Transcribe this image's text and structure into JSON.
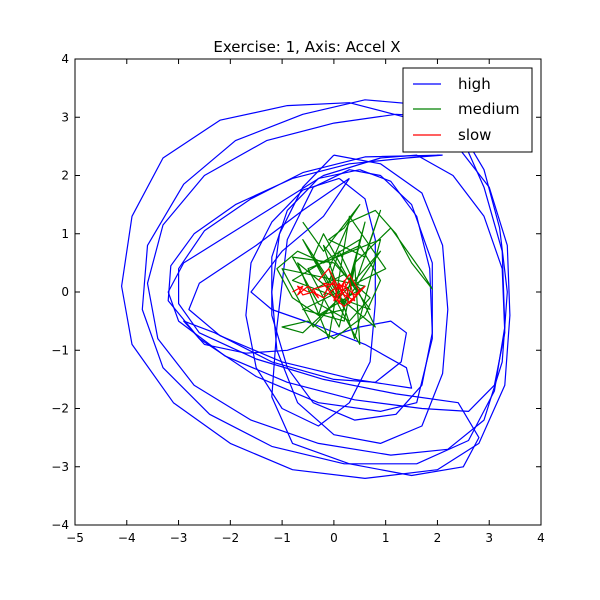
{
  "chart_data": {
    "type": "line",
    "title": "Exercise: 1, Axis: Accel X",
    "xlabel": "",
    "ylabel": "",
    "xlim": [
      -5,
      4
    ],
    "ylim": [
      -4,
      4
    ],
    "xticks": [
      -5,
      -4,
      -3,
      -2,
      -1,
      0,
      1,
      2,
      3,
      4
    ],
    "yticks": [
      -4,
      -3,
      -2,
      -1,
      0,
      1,
      2,
      3,
      4
    ],
    "grid": false,
    "legend_position": "top-right",
    "series": [
      {
        "name": "high",
        "color": "#0000ff",
        "points": [
          [
            2.1,
            2.35
          ],
          [
            0.6,
            2.32
          ],
          [
            -0.6,
            2.05
          ],
          [
            -1.6,
            1.6
          ],
          [
            -2.5,
            1.05
          ],
          [
            -3.0,
            0.4
          ],
          [
            -3.0,
            -0.2
          ],
          [
            -2.6,
            -0.7
          ],
          [
            -1.5,
            -1.15
          ],
          [
            -0.2,
            -1.5
          ],
          [
            1.2,
            -1.75
          ],
          [
            2.4,
            -1.9
          ],
          [
            2.8,
            -2.5
          ],
          [
            2.5,
            -3.0
          ],
          [
            1.5,
            -3.15
          ],
          [
            0.3,
            -2.95
          ],
          [
            -0.8,
            -2.6
          ],
          [
            -1.2,
            -1.8
          ],
          [
            -1.1,
            -0.6
          ],
          [
            -0.9,
            0.9
          ],
          [
            -0.4,
            1.8
          ],
          [
            0.3,
            2.1
          ],
          [
            0.9,
            2.0
          ],
          [
            1.5,
            1.5
          ],
          [
            1.9,
            0.5
          ],
          [
            1.9,
            -0.8
          ],
          [
            1.6,
            -1.9
          ],
          [
            0.9,
            -2.05
          ],
          [
            -0.3,
            -1.9
          ],
          [
            -1.5,
            -1.45
          ],
          [
            -2.6,
            -0.8
          ],
          [
            -3.2,
            -0.15
          ],
          [
            -3.15,
            0.45
          ],
          [
            -2.7,
            1.0
          ],
          [
            -1.9,
            1.5
          ],
          [
            -0.8,
            1.95
          ],
          [
            0.3,
            2.2
          ],
          [
            1.4,
            2.3
          ],
          [
            2.1,
            2.35
          ]
        ]
      },
      {
        "name": "",
        "color": "#0000ff",
        "points": [
          [
            1.6,
            2.95
          ],
          [
            0.3,
            3.25
          ],
          [
            -0.9,
            3.2
          ],
          [
            -2.2,
            2.95
          ],
          [
            -3.3,
            2.3
          ],
          [
            -3.9,
            1.3
          ],
          [
            -4.1,
            0.1
          ],
          [
            -3.9,
            -0.9
          ],
          [
            -3.1,
            -1.9
          ],
          [
            -2.0,
            -2.6
          ],
          [
            -0.8,
            -3.05
          ],
          [
            0.6,
            -3.2
          ],
          [
            2.0,
            -3.05
          ],
          [
            2.8,
            -2.6
          ],
          [
            3.3,
            -1.6
          ],
          [
            3.4,
            -0.4
          ],
          [
            3.35,
            0.8
          ],
          [
            3.0,
            1.8
          ],
          [
            2.3,
            2.6
          ],
          [
            1.6,
            2.95
          ]
        ]
      },
      {
        "name": "",
        "color": "#0000ff",
        "points": [
          [
            1.9,
            3.2
          ],
          [
            0.6,
            3.3
          ],
          [
            -0.6,
            3.05
          ],
          [
            -1.9,
            2.6
          ],
          [
            -2.9,
            1.85
          ],
          [
            -3.6,
            0.8
          ],
          [
            -3.7,
            -0.3
          ],
          [
            -3.3,
            -1.3
          ],
          [
            -2.4,
            -2.1
          ],
          [
            -1.2,
            -2.65
          ],
          [
            0.2,
            -2.95
          ],
          [
            1.6,
            -2.95
          ],
          [
            2.6,
            -2.55
          ],
          [
            3.1,
            -1.7
          ],
          [
            3.3,
            -0.6
          ],
          [
            3.25,
            0.7
          ],
          [
            2.9,
            1.8
          ],
          [
            2.5,
            2.6
          ],
          [
            1.9,
            3.2
          ]
        ]
      },
      {
        "name": "",
        "color": "#0000ff",
        "points": [
          [
            0.9,
            2.3
          ],
          [
            -0.2,
            2.0
          ],
          [
            -1.1,
            1.5
          ],
          [
            -2.0,
            1.0
          ],
          [
            -2.9,
            0.5
          ],
          [
            -3.2,
            0.0
          ],
          [
            -3.0,
            -0.5
          ],
          [
            -2.1,
            -1.1
          ],
          [
            -0.9,
            -1.55
          ],
          [
            0.4,
            -1.85
          ],
          [
            1.7,
            -2.0
          ],
          [
            2.6,
            -2.05
          ],
          [
            3.1,
            -1.6
          ],
          [
            3.3,
            -0.7
          ],
          [
            3.25,
            0.4
          ],
          [
            2.9,
            1.3
          ],
          [
            2.3,
            2.0
          ],
          [
            1.6,
            2.35
          ],
          [
            0.9,
            2.3
          ]
        ]
      },
      {
        "name": "",
        "color": "#0000ff",
        "points": [
          [
            2.3,
            3.0
          ],
          [
            1.2,
            3.05
          ],
          [
            0.0,
            2.9
          ],
          [
            -1.3,
            2.6
          ],
          [
            -2.5,
            2.0
          ],
          [
            -3.3,
            1.15
          ],
          [
            -3.6,
            0.15
          ],
          [
            -3.4,
            -0.8
          ],
          [
            -2.7,
            -1.6
          ],
          [
            -1.6,
            -2.2
          ],
          [
            -0.3,
            -2.6
          ],
          [
            1.1,
            -2.8
          ],
          [
            2.2,
            -2.7
          ],
          [
            2.9,
            -2.2
          ],
          [
            3.25,
            -1.2
          ],
          [
            3.35,
            0.0
          ],
          [
            3.2,
            1.1
          ],
          [
            2.9,
            2.1
          ],
          [
            2.3,
            3.0
          ]
        ]
      },
      {
        "name": "",
        "color": "#0000ff",
        "points": [
          [
            0.3,
            1.95
          ],
          [
            -0.6,
            1.4
          ],
          [
            -1.5,
            0.8
          ],
          [
            -2.6,
            0.15
          ],
          [
            -2.8,
            -0.3
          ],
          [
            -2.2,
            -0.75
          ],
          [
            -1.0,
            -1.2
          ],
          [
            0.4,
            -1.5
          ],
          [
            1.5,
            -1.65
          ],
          [
            1.4,
            -1.3
          ],
          [
            0.6,
            -0.9
          ],
          [
            -0.4,
            -0.55
          ],
          [
            -1.2,
            -0.3
          ],
          [
            -1.6,
            0.0
          ],
          [
            -1.0,
            0.7
          ],
          [
            -0.2,
            1.3
          ],
          [
            0.3,
            1.95
          ]
        ]
      },
      {
        "name": "",
        "color": "#0000ff",
        "points": [
          [
            0.0,
            2.35
          ],
          [
            0.9,
            2.2
          ],
          [
            1.7,
            1.7
          ],
          [
            2.1,
            0.8
          ],
          [
            2.2,
            -0.3
          ],
          [
            2.1,
            -1.4
          ],
          [
            1.7,
            -2.3
          ],
          [
            0.9,
            -2.6
          ],
          [
            0.0,
            -2.45
          ],
          [
            -0.7,
            -1.9
          ],
          [
            -1.1,
            -1.0
          ],
          [
            -1.2,
            0.0
          ],
          [
            -1.05,
            1.0
          ],
          [
            -0.6,
            1.8
          ],
          [
            0.0,
            2.35
          ]
        ]
      },
      {
        "name": "",
        "color": "#0000ff",
        "points": [
          [
            0.5,
            2.1
          ],
          [
            1.1,
            1.9
          ],
          [
            1.6,
            1.3
          ],
          [
            1.85,
            0.4
          ],
          [
            1.9,
            -0.7
          ],
          [
            1.7,
            -1.6
          ],
          [
            1.2,
            -2.1
          ],
          [
            0.4,
            -2.2
          ],
          [
            -0.4,
            -1.9
          ],
          [
            -0.9,
            -1.3
          ],
          [
            -1.2,
            -0.4
          ],
          [
            -1.2,
            0.6
          ],
          [
            -0.9,
            1.4
          ],
          [
            -0.3,
            1.95
          ],
          [
            0.5,
            2.1
          ]
        ]
      },
      {
        "name": "",
        "color": "#0000ff",
        "points": [
          [
            0.1,
            1.95
          ],
          [
            0.6,
            1.6
          ],
          [
            0.8,
            0.9
          ],
          [
            0.8,
            -0.2
          ],
          [
            0.7,
            -1.2
          ],
          [
            0.3,
            -1.9
          ],
          [
            -0.3,
            -2.3
          ],
          [
            -1.0,
            -2.0
          ],
          [
            -1.5,
            -1.3
          ],
          [
            -1.7,
            -0.4
          ],
          [
            -1.6,
            0.5
          ],
          [
            -1.2,
            1.2
          ],
          [
            -0.6,
            1.75
          ],
          [
            0.1,
            1.95
          ]
        ]
      },
      {
        "name": "",
        "color": "#0000ff",
        "points": [
          [
            0.8,
            -1.55
          ],
          [
            1.3,
            -1.2
          ],
          [
            1.4,
            -0.7
          ],
          [
            1.1,
            -0.5
          ],
          [
            0.5,
            -0.6
          ],
          [
            -0.2,
            -0.8
          ],
          [
            -0.9,
            -1.0
          ],
          [
            -1.7,
            -1.05
          ],
          [
            -2.5,
            -0.9
          ],
          [
            -2.9,
            -0.5
          ],
          [
            -2.3,
            -0.7
          ],
          [
            -1.2,
            -1.2
          ],
          [
            0.0,
            -1.5
          ],
          [
            0.8,
            -1.55
          ]
        ]
      },
      {
        "name": "medium",
        "color": "#008000",
        "points": [
          [
            0.0,
            0.0
          ],
          [
            -0.4,
            0.6
          ],
          [
            -0.2,
            1.0
          ],
          [
            0.3,
            0.2
          ],
          [
            0.6,
            1.2
          ],
          [
            0.1,
            -0.6
          ],
          [
            -0.5,
            0.4
          ],
          [
            0.9,
            0.9
          ],
          [
            0.4,
            -0.8
          ],
          [
            -0.2,
            0.8
          ],
          [
            0.7,
            -0.3
          ],
          [
            -0.8,
            0.2
          ],
          [
            0.5,
            0.9
          ],
          [
            0.2,
            -0.5
          ],
          [
            -0.6,
            -0.3
          ],
          [
            1.0,
            0.4
          ],
          [
            0.3,
            1.3
          ],
          [
            -0.1,
            -0.8
          ],
          [
            -0.7,
            0.5
          ],
          [
            0.8,
            -0.6
          ],
          [
            0.1,
            0.7
          ],
          [
            -0.3,
            -0.4
          ],
          [
            0.6,
            0.1
          ],
          [
            -1.0,
            0.4
          ],
          [
            -0.4,
            -0.6
          ],
          [
            0.9,
            0.7
          ],
          [
            0.2,
            -0.2
          ],
          [
            -0.6,
            0.9
          ],
          [
            0.5,
            -0.9
          ],
          [
            0.4,
            0.5
          ]
        ]
      },
      {
        "name": "",
        "color": "#008000",
        "points": [
          [
            0.4,
            0.5
          ],
          [
            1.1,
            1.1
          ],
          [
            1.5,
            0.6
          ],
          [
            1.7,
            0.35
          ],
          [
            1.9,
            0.05
          ],
          [
            1.5,
            0.5
          ],
          [
            1.2,
            1.0
          ],
          [
            0.8,
            1.4
          ],
          [
            0.3,
            1.2
          ],
          [
            -0.1,
            0.4
          ],
          [
            0.2,
            -0.3
          ],
          [
            -0.3,
            -0.4
          ],
          [
            -0.8,
            -0.1
          ],
          [
            -1.1,
            0.4
          ],
          [
            -0.7,
            0.7
          ],
          [
            -0.2,
            0.5
          ],
          [
            0.5,
            0.8
          ],
          [
            0.9,
            0.2
          ],
          [
            0.6,
            -0.4
          ],
          [
            0.0,
            -0.8
          ],
          [
            -0.5,
            -0.5
          ],
          [
            -1.0,
            -0.6
          ],
          [
            -0.6,
            -0.7
          ],
          [
            0.0,
            -0.2
          ]
        ]
      },
      {
        "name": "",
        "color": "#008000",
        "points": [
          [
            -0.6,
            1.2
          ],
          [
            -0.2,
            0.7
          ],
          [
            0.5,
            1.5
          ],
          [
            0.2,
            1.1
          ],
          [
            -0.1,
            0.9
          ],
          [
            0.6,
            0.6
          ],
          [
            0.9,
            1.4
          ],
          [
            0.4,
            0.1
          ],
          [
            0.0,
            0.5
          ],
          [
            -0.8,
            0.6
          ],
          [
            -0.3,
            -0.2
          ],
          [
            0.3,
            -0.5
          ],
          [
            0.7,
            -0.1
          ],
          [
            0.2,
            0.3
          ],
          [
            -0.5,
            0.0
          ]
        ]
      },
      {
        "name": "slow",
        "color": "#ff0000",
        "points": [
          [
            -0.8,
            0.0
          ],
          [
            -0.6,
            0.1
          ],
          [
            -0.7,
            -0.05
          ],
          [
            -0.5,
            0.1
          ],
          [
            -0.3,
            -0.1
          ],
          [
            -0.4,
            0.05
          ],
          [
            -0.2,
            0.1
          ],
          [
            0.0,
            0.15
          ],
          [
            0.1,
            -0.2
          ],
          [
            0.2,
            0.2
          ],
          [
            0.3,
            -0.1
          ],
          [
            0.1,
            0.15
          ],
          [
            0.0,
            -0.15
          ],
          [
            0.2,
            0.05
          ],
          [
            0.3,
            0.2
          ],
          [
            0.4,
            -0.15
          ],
          [
            0.2,
            -0.05
          ],
          [
            0.1,
            0.1
          ],
          [
            0.0,
            0.05
          ],
          [
            -0.2,
            -0.1
          ],
          [
            -0.4,
            0.0
          ],
          [
            -0.6,
            -0.05
          ],
          [
            -0.7,
            0.1
          ],
          [
            -0.5,
            0.0
          ]
        ]
      },
      {
        "name": "",
        "color": "#ff0000",
        "points": [
          [
            -0.3,
            0.2
          ],
          [
            -0.1,
            0.4
          ],
          [
            0.1,
            0.05
          ],
          [
            0.3,
            0.3
          ],
          [
            0.5,
            0.0
          ],
          [
            0.2,
            -0.25
          ],
          [
            0.0,
            -0.1
          ],
          [
            -0.2,
            0.15
          ],
          [
            0.2,
            0.1
          ],
          [
            0.4,
            -0.05
          ],
          [
            0.6,
            0.1
          ],
          [
            0.3,
            -0.2
          ],
          [
            0.0,
            0.2
          ],
          [
            -0.2,
            -0.05
          ]
        ]
      }
    ]
  }
}
